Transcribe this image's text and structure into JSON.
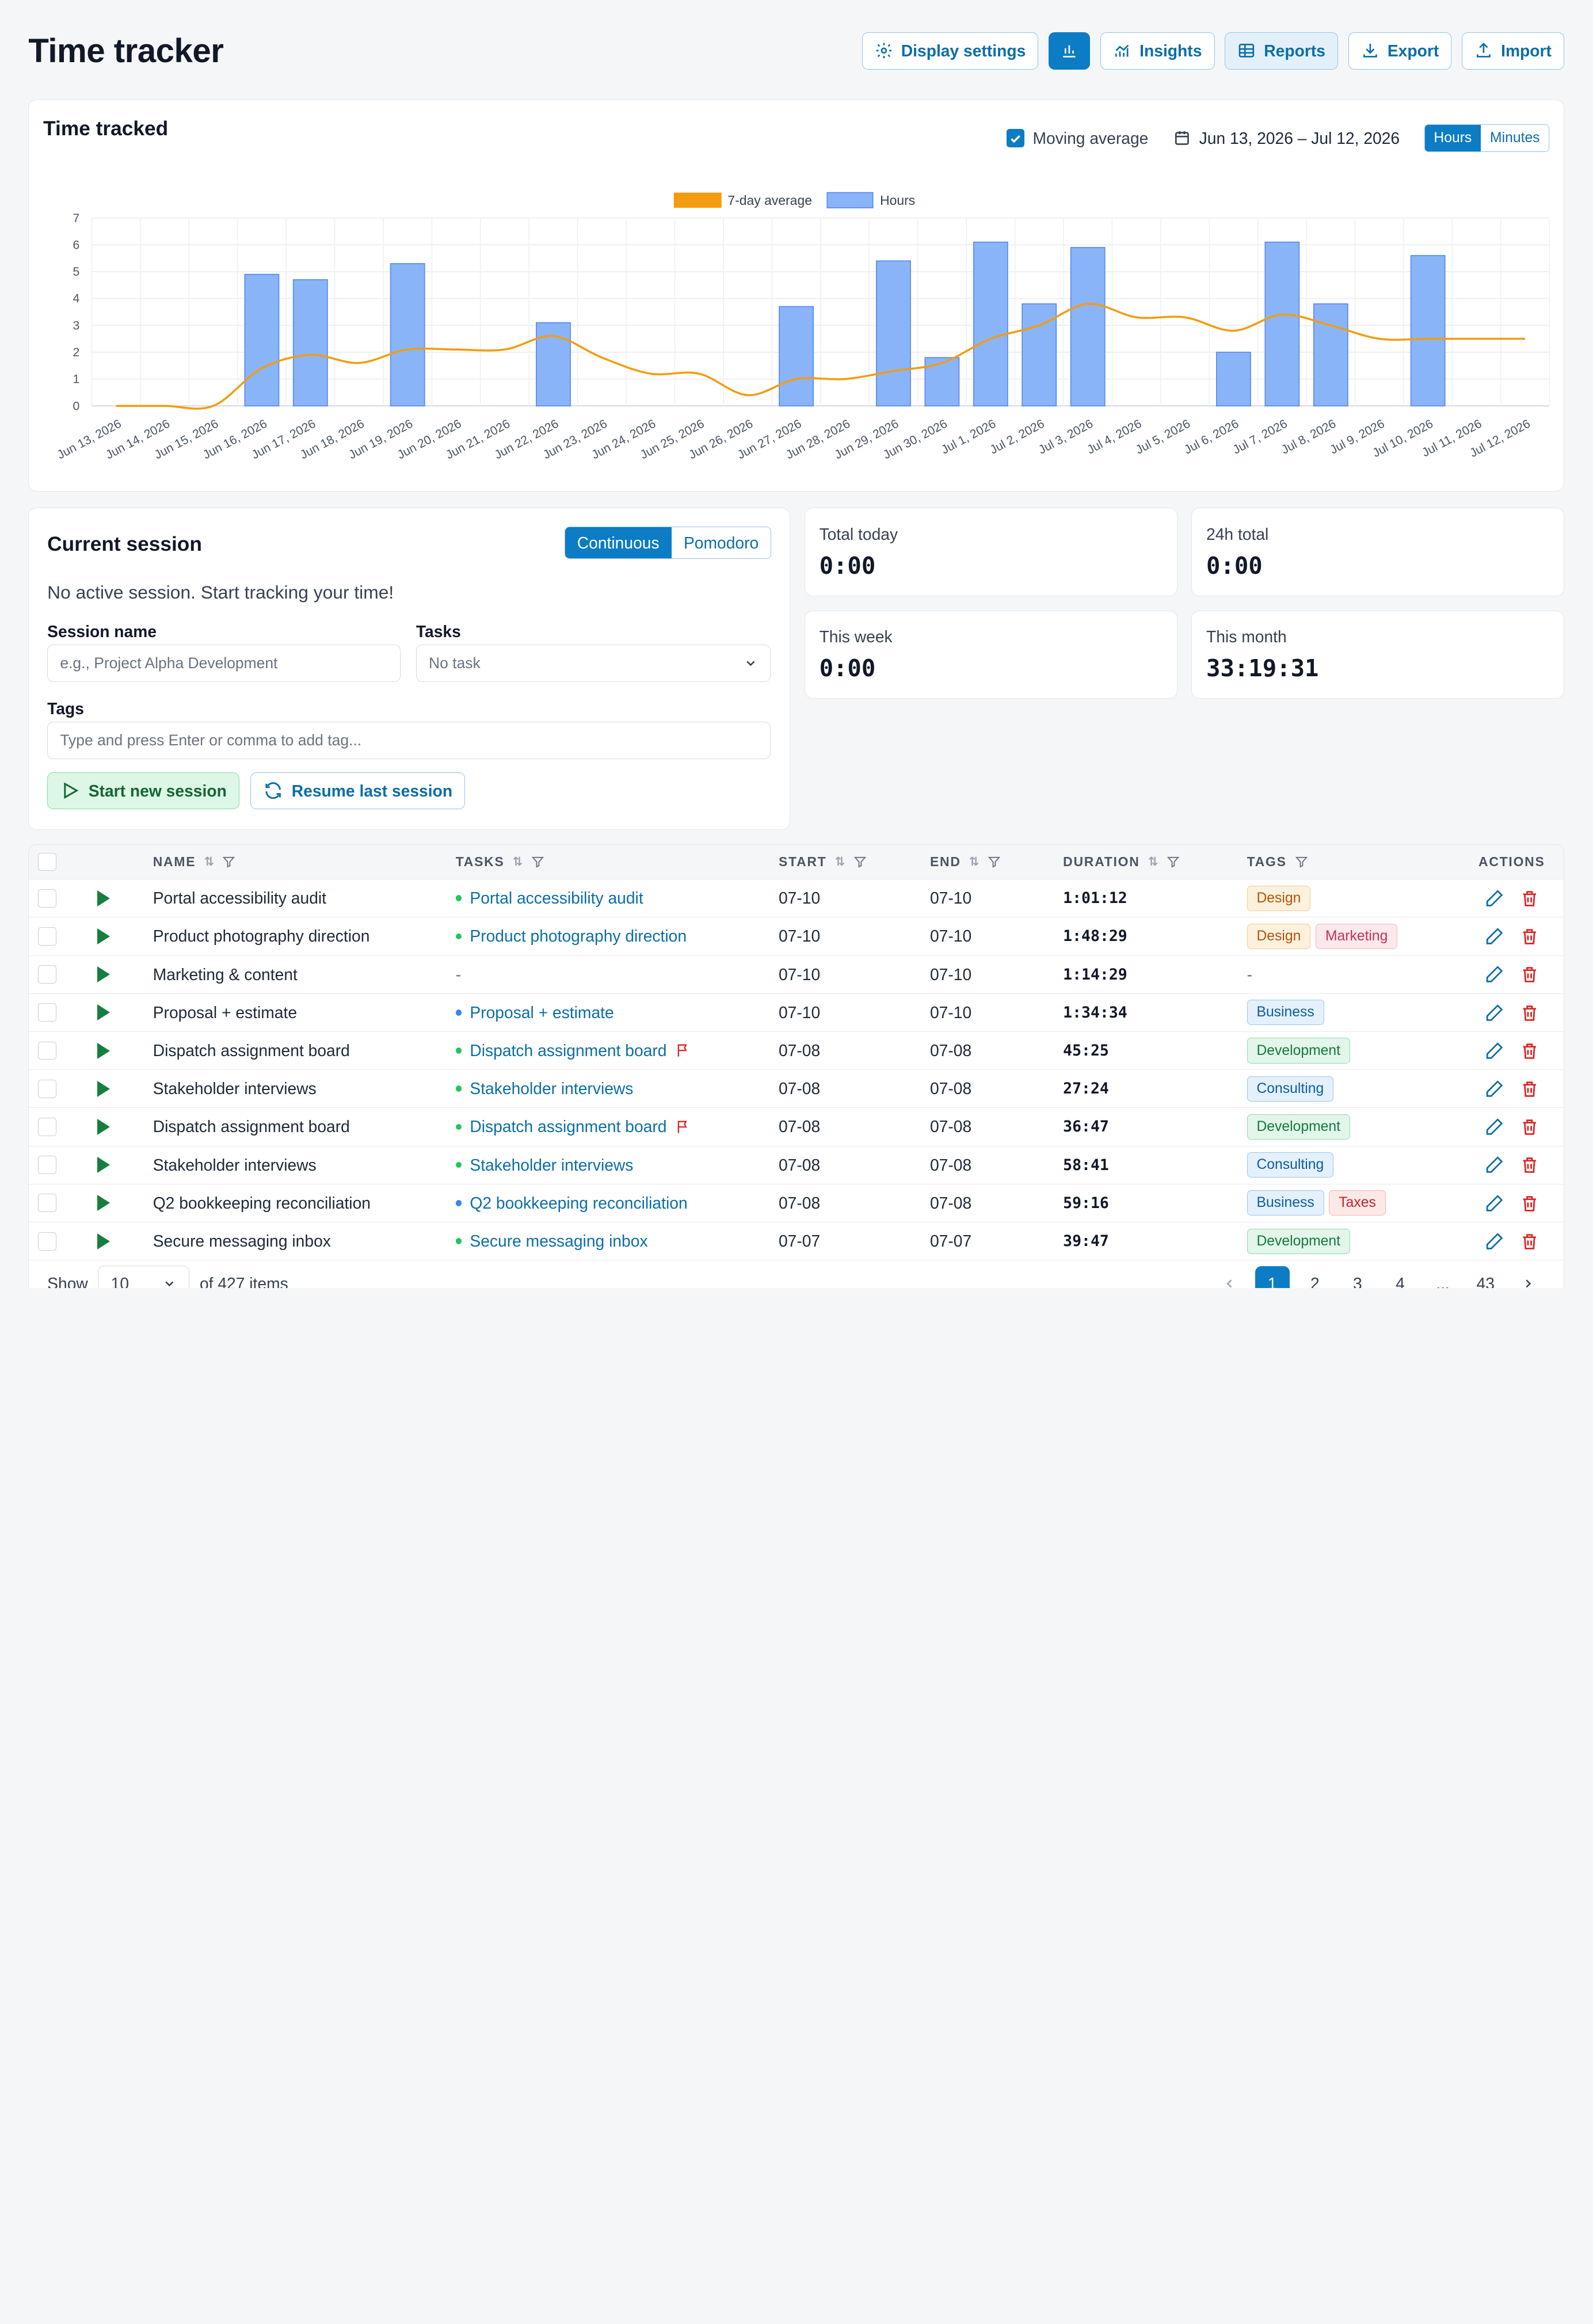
{
  "header": {
    "title": "Time tracker",
    "buttons": {
      "display_settings": "Display settings",
      "insights": "Insights",
      "reports": "Reports",
      "export": "Export",
      "import": "Import"
    }
  },
  "chart_panel": {
    "title": "Time tracked",
    "moving_average_label": "Moving average",
    "moving_average_checked": true,
    "date_range": "Jun 13, 2026 – Jul 12, 2026",
    "unit_options": [
      "Hours",
      "Minutes"
    ],
    "unit_selected": "Hours"
  },
  "chart_data": {
    "type": "bar",
    "legend_placement": "top-center",
    "grid": true,
    "ylim": [
      0,
      7
    ],
    "yticks": [
      "0",
      "1",
      "2",
      "3",
      "4",
      "5",
      "6",
      "7"
    ],
    "categories": [
      "Jun 13, 2026",
      "Jun 14, 2026",
      "Jun 15, 2026",
      "Jun 16, 2026",
      "Jun 17, 2026",
      "Jun 18, 2026",
      "Jun 19, 2026",
      "Jun 20, 2026",
      "Jun 21, 2026",
      "Jun 22, 2026",
      "Jun 23, 2026",
      "Jun 24, 2026",
      "Jun 25, 2026",
      "Jun 26, 2026",
      "Jun 27, 2026",
      "Jun 28, 2026",
      "Jun 29, 2026",
      "Jun 30, 2026",
      "Jul 1, 2026",
      "Jul 2, 2026",
      "Jul 3, 2026",
      "Jul 4, 2026",
      "Jul 5, 2026",
      "Jul 6, 2026",
      "Jul 7, 2026",
      "Jul 8, 2026",
      "Jul 9, 2026",
      "Jul 10, 2026",
      "Jul 11, 2026",
      "Jul 12, 2026"
    ],
    "series": [
      {
        "name": "7-day average",
        "kind": "line",
        "color": "#f39c12",
        "values": [
          0,
          0,
          0,
          1.4,
          1.9,
          1.6,
          2.1,
          2.1,
          2.1,
          2.6,
          1.8,
          1.2,
          1.2,
          0.4,
          1.0,
          1.0,
          1.3,
          1.6,
          2.5,
          3.0,
          3.8,
          3.3,
          3.3,
          2.8,
          3.4,
          3.0,
          2.5,
          2.5,
          2.5,
          2.5
        ]
      },
      {
        "name": "Hours",
        "kind": "bar",
        "color": "#8ab4f8",
        "values": [
          0,
          0,
          0,
          4.9,
          4.7,
          0,
          5.3,
          0,
          0,
          3.1,
          0,
          0,
          0,
          0,
          3.7,
          0,
          5.4,
          1.8,
          6.1,
          3.8,
          5.9,
          0,
          0,
          2.0,
          6.1,
          3.8,
          0,
          5.6,
          0,
          0
        ]
      }
    ]
  },
  "session": {
    "title": "Current session",
    "modes": [
      "Continuous",
      "Pomodoro"
    ],
    "mode_selected": "Continuous",
    "status_text": "No active session. Start tracking your time!",
    "session_name_label": "Session name",
    "session_name_placeholder": "e.g., Project Alpha Development",
    "tasks_label": "Tasks",
    "tasks_value": "No task",
    "tags_label": "Tags",
    "tags_placeholder": "Type and press Enter or comma to add tag...",
    "start_button": "Start new session",
    "resume_button": "Resume last session"
  },
  "stats": [
    {
      "label": "Total today",
      "value": "0:00"
    },
    {
      "label": "24h total",
      "value": "0:00"
    },
    {
      "label": "This week",
      "value": "0:00"
    },
    {
      "label": "This month",
      "value": "33:19:31"
    }
  ],
  "table": {
    "columns": [
      "NAME",
      "TASKS",
      "START",
      "END",
      "DURATION",
      "TAGS",
      "ACTIONS"
    ],
    "rows": [
      {
        "name": "Portal accessibility audit",
        "task": "Portal accessibility audit",
        "task_dot": "#22c55e",
        "flag": false,
        "start": "07-10",
        "end": "07-10",
        "duration": "1:01:12",
        "tags": [
          "Design"
        ]
      },
      {
        "name": "Product photography direction",
        "task": "Product photography direction",
        "task_dot": "#22c55e",
        "flag": false,
        "start": "07-10",
        "end": "07-10",
        "duration": "1:48:29",
        "tags": [
          "Design",
          "Marketing"
        ]
      },
      {
        "name": "Marketing & content",
        "task": "-",
        "task_dot": "",
        "flag": false,
        "start": "07-10",
        "end": "07-10",
        "duration": "1:14:29",
        "tags": []
      },
      {
        "name": "Proposal + estimate",
        "task": "Proposal + estimate",
        "task_dot": "#3b82f6",
        "flag": false,
        "start": "07-10",
        "end": "07-10",
        "duration": "1:34:34",
        "tags": [
          "Business"
        ]
      },
      {
        "name": "Dispatch assignment board",
        "task": "Dispatch assignment board",
        "task_dot": "#22c55e",
        "flag": true,
        "start": "07-08",
        "end": "07-08",
        "duration": "45:25",
        "tags": [
          "Development"
        ]
      },
      {
        "name": "Stakeholder interviews",
        "task": "Stakeholder interviews",
        "task_dot": "#22c55e",
        "flag": false,
        "start": "07-08",
        "end": "07-08",
        "duration": "27:24",
        "tags": [
          "Consulting"
        ]
      },
      {
        "name": "Dispatch assignment board",
        "task": "Dispatch assignment board",
        "task_dot": "#22c55e",
        "flag": true,
        "start": "07-08",
        "end": "07-08",
        "duration": "36:47",
        "tags": [
          "Development"
        ]
      },
      {
        "name": "Stakeholder interviews",
        "task": "Stakeholder interviews",
        "task_dot": "#22c55e",
        "flag": false,
        "start": "07-08",
        "end": "07-08",
        "duration": "58:41",
        "tags": [
          "Consulting"
        ]
      },
      {
        "name": "Q2 bookkeeping reconciliation",
        "task": "Q2 bookkeeping reconciliation",
        "task_dot": "#3b82f6",
        "flag": false,
        "start": "07-08",
        "end": "07-08",
        "duration": "59:16",
        "tags": [
          "Business",
          "Taxes"
        ]
      },
      {
        "name": "Secure messaging inbox",
        "task": "Secure messaging inbox",
        "task_dot": "#22c55e",
        "flag": false,
        "start": "07-07",
        "end": "07-07",
        "duration": "39:47",
        "tags": [
          "Development"
        ]
      }
    ],
    "tag_colors": {
      "Design": {
        "bg": "#fdf1de",
        "border": "#f5c98a",
        "text": "#b45309"
      },
      "Marketing": {
        "bg": "#fde8ec",
        "border": "#f5b5c2",
        "text": "#be3455"
      },
      "Business": {
        "bg": "#e4f0fb",
        "border": "#9cc6ec",
        "text": "#0b5fa0"
      },
      "Development": {
        "bg": "#e2f6ea",
        "border": "#95d9b0",
        "text": "#157a3f"
      },
      "Consulting": {
        "bg": "#e4f0fb",
        "border": "#9cc6ec",
        "text": "#0b5fa0"
      },
      "Taxes": {
        "bg": "#fde8e8",
        "border": "#f3b3b3",
        "text": "#c02626"
      }
    }
  },
  "footer": {
    "show_label": "Show",
    "page_size": "10",
    "items_text": "of 427 items",
    "pages": [
      "1",
      "2",
      "3",
      "4",
      "...",
      "43"
    ],
    "current_page": "1"
  }
}
